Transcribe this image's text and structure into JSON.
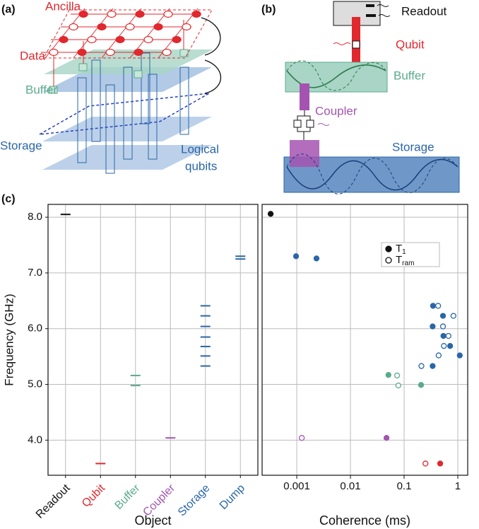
{
  "panel_labels": [
    "(a)",
    "(b)",
    "(c)"
  ],
  "diagram_a": {
    "ancilla": "Ancilla",
    "data": "Data",
    "buffer": "Buffer",
    "storage": "Storage",
    "logical": [
      "Logical",
      "qubits"
    ]
  },
  "diagram_b": {
    "readout": "Readout",
    "qubit": "Qubit",
    "buffer": "Buffer",
    "coupler": "Coupler",
    "storage": "Storage"
  },
  "chart_data": [
    {
      "type": "strip",
      "xlabel": "Object",
      "ylabel": "Frequency (GHz)",
      "categories": [
        "Readout",
        "Qubit",
        "Buffer",
        "Coupler",
        "Storage",
        "Dump"
      ],
      "colors": [
        "#111111",
        "#e0282e",
        "#5aab8c",
        "#a454b0",
        "#2a66a8",
        "#2a66a8"
      ],
      "values": [
        [
          8.05
        ],
        [
          3.58
        ],
        [
          5.16,
          4.98
        ],
        [
          4.04
        ],
        [
          6.41,
          6.23,
          6.04,
          5.85,
          5.68,
          5.51,
          5.33
        ],
        [
          7.3,
          7.25
        ]
      ],
      "ylim": [
        3.37,
        8.23
      ],
      "yticks": [
        {
          "value": 4,
          "label": "4.0"
        },
        {
          "value": 5,
          "label": "5.0"
        },
        {
          "value": 6,
          "label": "6.0"
        },
        {
          "value": 7,
          "label": "7.0"
        },
        {
          "value": 8,
          "label": "8.0"
        }
      ],
      "grid": true
    },
    {
      "type": "scatter",
      "xlabel": "Coherence (ms)",
      "xscale": "log",
      "xlim": [
        0.000226,
        1.53
      ],
      "xticks": [
        0.001,
        0.01,
        0.1,
        1
      ],
      "ylim": [
        3.37,
        8.23
      ],
      "grid": true,
      "legend": "upper right",
      "series": [
        {
          "name": "T1",
          "marker": "filled",
          "x": [
            0.000326,
            0.00097,
            0.00233,
            0.346,
            0.53,
            0.34,
            0.54,
            0.72,
            1.09,
            0.34,
            0.051,
            0.207,
            0.047,
            0.47
          ],
          "values": [
            8.06,
            7.3,
            7.26,
            6.41,
            6.23,
            6.04,
            5.87,
            5.69,
            5.52,
            5.33,
            5.17,
            4.99,
            4.04,
            3.58
          ],
          "colors": [
            "#111111",
            "#2a66a8",
            "#2a66a8",
            "#2a66a8",
            "#2a66a8",
            "#2a66a8",
            "#2a66a8",
            "#2a66a8",
            "#2a66a8",
            "#2a66a8",
            "#5aab8c",
            "#5aab8c",
            "#a454b0",
            "#e0282e"
          ]
        },
        {
          "name": "Tram",
          "marker": "open",
          "x": [
            0.43,
            0.83,
            0.53,
            0.67,
            0.55,
            0.44,
            0.21,
            0.074,
            0.078,
            0.00124,
            0.25
          ],
          "values": [
            6.41,
            6.23,
            6.04,
            5.87,
            5.69,
            5.52,
            5.33,
            5.16,
            4.98,
            4.04,
            3.58
          ],
          "colors": [
            "#2a66a8",
            "#2a66a8",
            "#2a66a8",
            "#2a66a8",
            "#2a66a8",
            "#2a66a8",
            "#2a66a8",
            "#5aab8c",
            "#5aab8c",
            "#a454b0",
            "#e0282e"
          ]
        }
      ]
    }
  ]
}
